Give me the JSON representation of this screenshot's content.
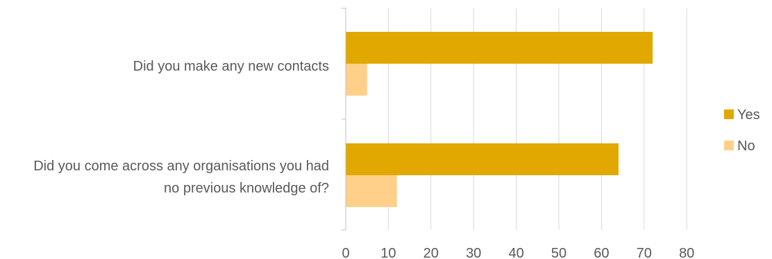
{
  "chart_data": {
    "type": "bar",
    "orientation": "horizontal",
    "categories": [
      [
        "Did you make any new contacts"
      ],
      [
        "Did you come across any organisations you had",
        "no previous knowledge of?"
      ]
    ],
    "series": [
      {
        "name": "Yes",
        "values": [
          72,
          64
        ],
        "color": "#E0A800"
      },
      {
        "name": "No",
        "values": [
          5,
          12
        ],
        "color": "#FFD08A"
      }
    ],
    "xlim": [
      0,
      80
    ],
    "xticks": [
      "0",
      "10",
      "20",
      "30",
      "40",
      "50",
      "60",
      "70",
      "80"
    ],
    "grid": true,
    "legend_position": "right"
  },
  "colors": {
    "grid": "#D9D9D9",
    "axis": "#BFBFBF",
    "text": "#595959"
  }
}
